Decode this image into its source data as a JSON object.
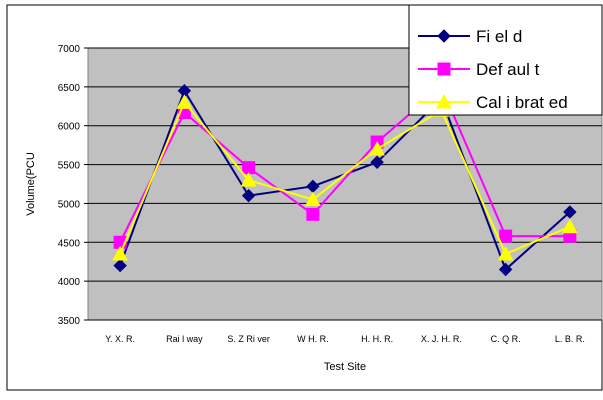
{
  "chart_data": {
    "type": "line",
    "title": "",
    "xlabel": "Test Site",
    "ylabel": "Volume(PCU",
    "categories": [
      "Y. X. R.",
      "Rai l way",
      "S. Z Ri ver",
      "W H. R.",
      "H. H. R.",
      "X. J. H. R.",
      "C. Q R.",
      "L. B. R."
    ],
    "ylim": [
      3500,
      7000
    ],
    "yticks": [
      3500,
      4000,
      4500,
      5000,
      5500,
      6000,
      6500,
      7000
    ],
    "grid": true,
    "legend_position": "top-right",
    "series": [
      {
        "name": "Fi el d",
        "marker": "diamond",
        "color": "#000080",
        "values": [
          4200,
          6450,
          5100,
          5220,
          5530,
          6350,
          4150,
          4890
        ]
      },
      {
        "name": "Def aul t",
        "marker": "square",
        "color": "#ff00ff",
        "values": [
          4500,
          6170,
          5460,
          4860,
          5790,
          6500,
          4580,
          4580
        ]
      },
      {
        "name": "Cal i brat ed",
        "marker": "triangle",
        "color": "#ffff00",
        "values": [
          4350,
          6300,
          5300,
          5050,
          5700,
          6200,
          4350,
          4700
        ]
      }
    ]
  }
}
